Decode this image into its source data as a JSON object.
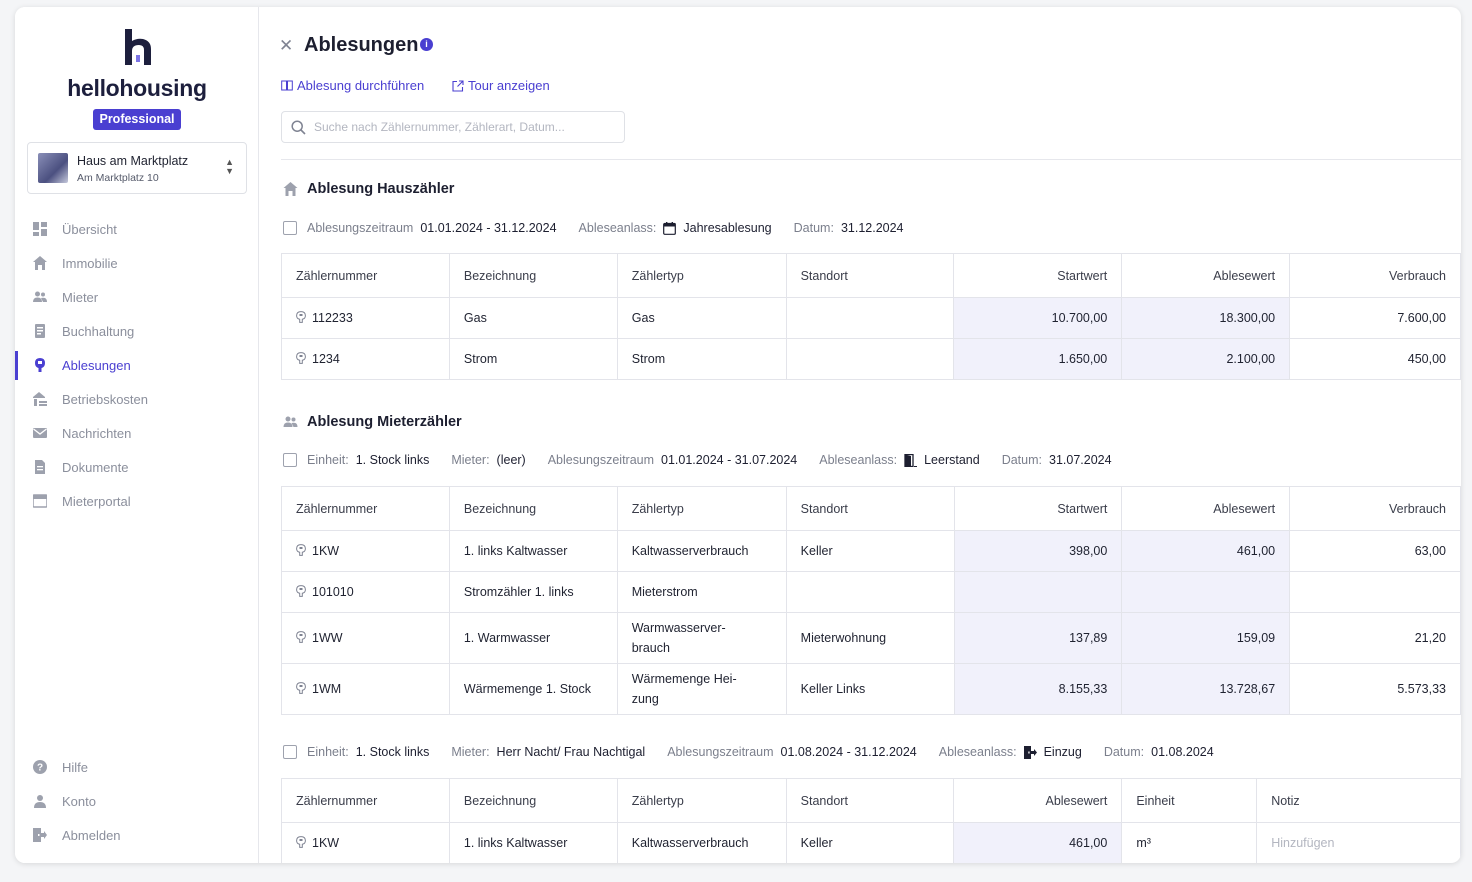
{
  "sidebar": {
    "logo_text": "hellohousing",
    "plan_badge": "Professional",
    "property": {
      "name": "Haus am Marktplatz",
      "address": "Am Marktplatz 10"
    },
    "nav": [
      {
        "label": "Übersicht",
        "icon": "dashboard-icon"
      },
      {
        "label": "Immobilie",
        "icon": "home-icon"
      },
      {
        "label": "Mieter",
        "icon": "users-icon"
      },
      {
        "label": "Buchhaltung",
        "icon": "ledger-icon"
      },
      {
        "label": "Ablesungen",
        "icon": "meter-icon",
        "active": true
      },
      {
        "label": "Betriebskosten",
        "icon": "costs-icon"
      },
      {
        "label": "Nachrichten",
        "icon": "mail-icon"
      },
      {
        "label": "Dokumente",
        "icon": "document-icon"
      },
      {
        "label": "Mieterportal",
        "icon": "portal-icon"
      }
    ],
    "bottom_nav": [
      {
        "label": "Hilfe",
        "icon": "help-icon"
      },
      {
        "label": "Konto",
        "icon": "account-icon"
      },
      {
        "label": "Abmelden",
        "icon": "logout-icon"
      }
    ]
  },
  "header": {
    "title": "Ablesungen",
    "actions": {
      "perform": "Ablesung durchführen",
      "tour": "Tour anzeigen"
    },
    "search_placeholder": "Suche nach Zählernummer, Zählerart, Datum..."
  },
  "columns": {
    "meter_no": "Zählernummer",
    "label": "Bezeichnung",
    "type": "Zählertyp",
    "location": "Standort",
    "start": "Startwert",
    "reading": "Ablesewert",
    "usage": "Verbrauch",
    "unit": "Einheit",
    "note": "Notiz"
  },
  "house": {
    "title": "Ablesung Hauszähler",
    "meta": {
      "period_label": "Ablesungszeitraum",
      "period": "01.01.2024 - 31.12.2024",
      "reason_label": "Ableseanlass:",
      "reason": "Jahresablesung",
      "date_label": "Datum:",
      "date": "31.12.2024"
    },
    "rows": [
      {
        "meter_no": "112233",
        "label": "Gas",
        "type": "Gas",
        "location": "",
        "start": "10.700,00",
        "reading": "18.300,00",
        "usage": "7.600,00"
      },
      {
        "meter_no": "1234",
        "label": "Strom",
        "type": "Strom",
        "location": "",
        "start": "1.650,00",
        "reading": "2.100,00",
        "usage": "450,00"
      }
    ]
  },
  "tenant": {
    "title": "Ablesung Mieterzähler",
    "meta": {
      "unit_label": "Einheit:",
      "unit": "1. Stock links",
      "tenant_label": "Mieter:",
      "tenant": "(leer)",
      "period_label": "Ablesungszeitraum",
      "period": "01.01.2024 - 31.07.2024",
      "reason_label": "Ableseanlass:",
      "reason": "Leerstand",
      "date_label": "Datum:",
      "date": "31.07.2024"
    },
    "rows": [
      {
        "meter_no": "1KW",
        "label": "1. links Kaltwasser",
        "type": "Kaltwasserverbrauch",
        "location": "Keller",
        "start": "398,00",
        "reading": "461,00",
        "usage": "63,00"
      },
      {
        "meter_no": "101010",
        "label": "Stromzähler 1. links",
        "type": "Mieterstrom",
        "location": "",
        "start": "",
        "reading": "",
        "usage": ""
      },
      {
        "meter_no": "1WW",
        "label": "1. Warmwasser",
        "type_line1": "Warmwasserver-",
        "type_line2": "brauch",
        "location": "Mieterwohnung",
        "start": "137,89",
        "reading": "159,09",
        "usage": "21,20"
      },
      {
        "meter_no": "1WM",
        "label": "Wärmemenge 1. Stock",
        "type_line1": "Wärmemenge Hei-",
        "type_line2": "zung",
        "location": "Keller Links",
        "start": "8.155,33",
        "reading": "13.728,67",
        "usage": "5.573,33"
      }
    ]
  },
  "tenant2": {
    "meta": {
      "unit_label": "Einheit:",
      "unit": "1. Stock links",
      "tenant_label": "Mieter:",
      "tenant": "Herr Nacht/ Frau Nachtigal",
      "period_label": "Ablesungszeitraum",
      "period": "01.08.2024 - 31.12.2024",
      "reason_label": "Ableseanlass:",
      "reason": "Einzug",
      "date_label": "Datum:",
      "date": "01.08.2024"
    },
    "rows": [
      {
        "meter_no": "1KW",
        "label": "1. links Kaltwasser",
        "type": "Kaltwasserverbrauch",
        "location": "Keller",
        "reading": "461,00",
        "unit": "m³",
        "note_placeholder": "Hinzufügen"
      }
    ]
  },
  "colors": {
    "accent": "#4a3fd1",
    "shade": "#f1f1fb"
  }
}
